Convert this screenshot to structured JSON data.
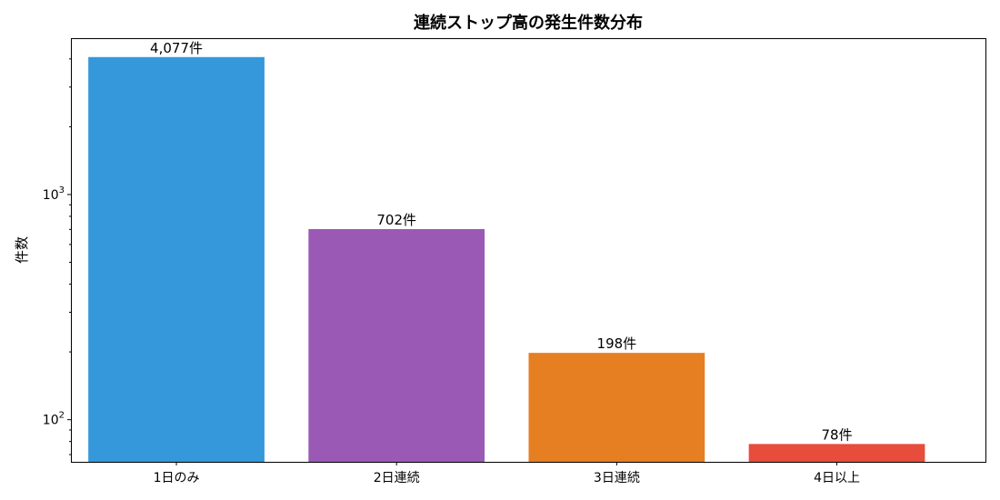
{
  "chart_data": {
    "type": "bar",
    "title": "連続ストップ高の発生件数分布",
    "xlabel": "",
    "ylabel": "件数",
    "y_scale": "log",
    "ylim": [
      65,
      4900
    ],
    "categories": [
      "1日のみ",
      "2日連続",
      "3日連続",
      "4日以上"
    ],
    "values": [
      4077,
      702,
      198,
      78
    ],
    "data_labels": [
      "4,077件",
      "702件",
      "198件",
      "78件"
    ],
    "colors": [
      "#3498db",
      "#9b59b6",
      "#e67e22",
      "#e74c3c"
    ],
    "major_ticks": [
      {
        "value": 100,
        "base": "10",
        "exp": "2"
      },
      {
        "value": 1000,
        "base": "10",
        "exp": "3"
      }
    ],
    "grid": false,
    "legend": "none"
  }
}
